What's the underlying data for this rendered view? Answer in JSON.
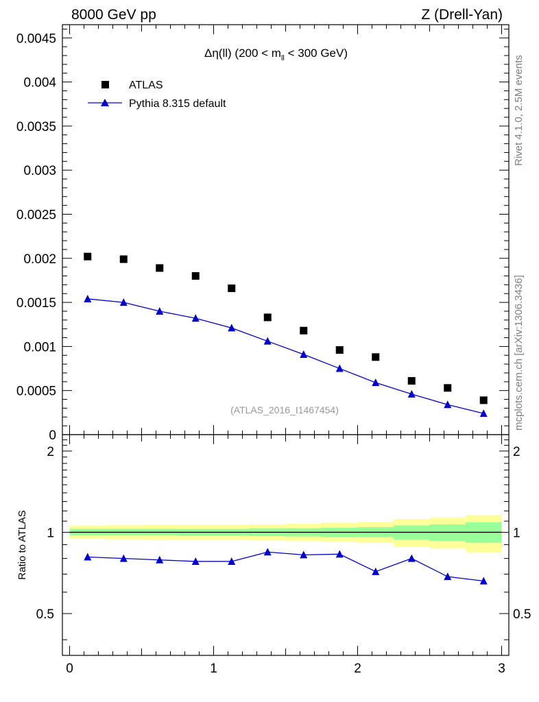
{
  "header": {
    "left": "8000 GeV pp",
    "right": "Z (Drell-Yan)"
  },
  "side_labels": {
    "rivet": "Rivet 4.1.0,  2.5M events",
    "mcplots": "mcplots.cern.ch [arXiv:1306.3436]"
  },
  "colors": {
    "mc": "#0000cc",
    "data": "#000000",
    "band_outer": "#ffff99",
    "band_inner": "#99ff99"
  },
  "chart_data": {
    "type": "scatter",
    "title_prefix": "Δη(ll) (200 < m",
    "title_sub": "ll",
    "title_suffix": " < 300 GeV)",
    "analysis_label": "(ATLAS_2016_I1467454)",
    "ylabel_ratio": "Ratio to ATLAS",
    "xlim": [
      -0.05,
      3.05
    ],
    "ylim": [
      0,
      0.00465
    ],
    "ratio_ylim": [
      0.35,
      2.3
    ],
    "x_ticks": [
      "0",
      "1",
      "2",
      "3"
    ],
    "y_ticks": [
      "0",
      "0.0005",
      "0.001",
      "0.0015",
      "0.002",
      "0.0025",
      "0.003",
      "0.0035",
      "0.004",
      "0.0045"
    ],
    "ratio_ticks": [
      "0.5",
      "1",
      "2"
    ],
    "x": [
      0.125,
      0.375,
      0.625,
      0.875,
      1.125,
      1.375,
      1.625,
      1.875,
      2.125,
      2.375,
      2.625,
      2.875
    ],
    "bin_edges": [
      0,
      0.25,
      0.5,
      0.75,
      1.0,
      1.25,
      1.5,
      1.75,
      2.0,
      2.25,
      2.5,
      2.75,
      3.0
    ],
    "series": [
      {
        "name": "ATLAS",
        "marker": "square",
        "values": [
          0.00202,
          0.00199,
          0.00189,
          0.0018,
          0.00166,
          0.00133,
          0.00118,
          0.00096,
          0.00088,
          0.00061,
          0.00053,
          0.00039
        ]
      },
      {
        "name": "Pythia 8.315 default",
        "marker": "triangle",
        "values": [
          0.00154,
          0.0015,
          0.0014,
          0.00132,
          0.00121,
          0.00106,
          0.00091,
          0.00075,
          0.00059,
          0.00046,
          0.00034,
          0.00024
        ]
      }
    ],
    "ratio": [
      0.81,
      0.8,
      0.79,
      0.78,
      0.78,
      0.845,
      0.825,
      0.83,
      0.715,
      0.8,
      0.685,
      0.66
    ],
    "band_inner": [
      [
        0.975,
        1.03
      ],
      [
        0.975,
        1.03
      ],
      [
        0.975,
        1.03
      ],
      [
        0.972,
        1.03
      ],
      [
        0.972,
        1.03
      ],
      [
        0.968,
        1.035
      ],
      [
        0.965,
        1.035
      ],
      [
        0.96,
        1.04
      ],
      [
        0.96,
        1.045
      ],
      [
        0.94,
        1.06
      ],
      [
        0.93,
        1.07
      ],
      [
        0.915,
        1.09
      ]
    ],
    "band_outer": [
      [
        0.945,
        1.06
      ],
      [
        0.942,
        1.062
      ],
      [
        0.94,
        1.065
      ],
      [
        0.94,
        1.065
      ],
      [
        0.938,
        1.066
      ],
      [
        0.933,
        1.07
      ],
      [
        0.93,
        1.075
      ],
      [
        0.922,
        1.085
      ],
      [
        0.918,
        1.09
      ],
      [
        0.885,
        1.12
      ],
      [
        0.87,
        1.135
      ],
      [
        0.84,
        1.16
      ]
    ]
  }
}
